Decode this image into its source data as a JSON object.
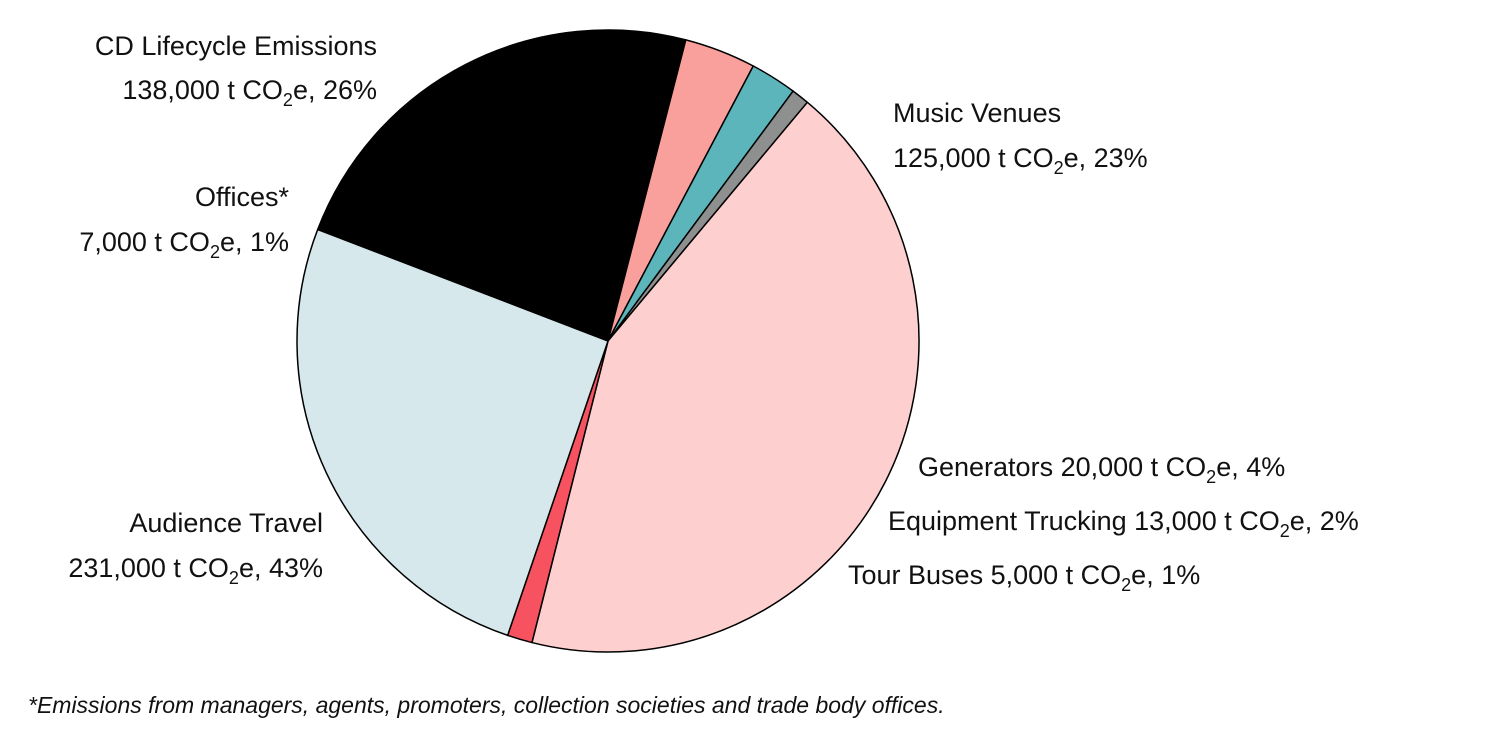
{
  "chart_data": {
    "type": "pie",
    "unit": "t CO2e",
    "slices": [
      {
        "name": "Music Venues",
        "value": 125000,
        "value_text": "125,000",
        "percent": 23,
        "color": "#000000"
      },
      {
        "name": "Generators",
        "value": 20000,
        "value_text": "20,000",
        "percent": 4,
        "color": "#f9a09c"
      },
      {
        "name": "Equipment Trucking",
        "value": 13000,
        "value_text": "13,000",
        "percent": 2,
        "color": "#5bb5bb"
      },
      {
        "name": "Tour Buses",
        "value": 5000,
        "value_text": "5,000",
        "percent": 1,
        "color": "#8e9090"
      },
      {
        "name": "Audience Travel",
        "value": 231000,
        "value_text": "231,000",
        "percent": 43,
        "color": "#fdd0cf"
      },
      {
        "name": "Offices*",
        "value": 7000,
        "value_text": "7,000",
        "percent": 1,
        "color": "#f75260"
      },
      {
        "name": "CD Lifecycle Emissions",
        "value": 138000,
        "value_text": "138,000",
        "percent": 26,
        "color": "#d6e8eb"
      }
    ]
  },
  "footnote": "*Emissions from managers, agents, promoters, collection societies and trade body offices."
}
